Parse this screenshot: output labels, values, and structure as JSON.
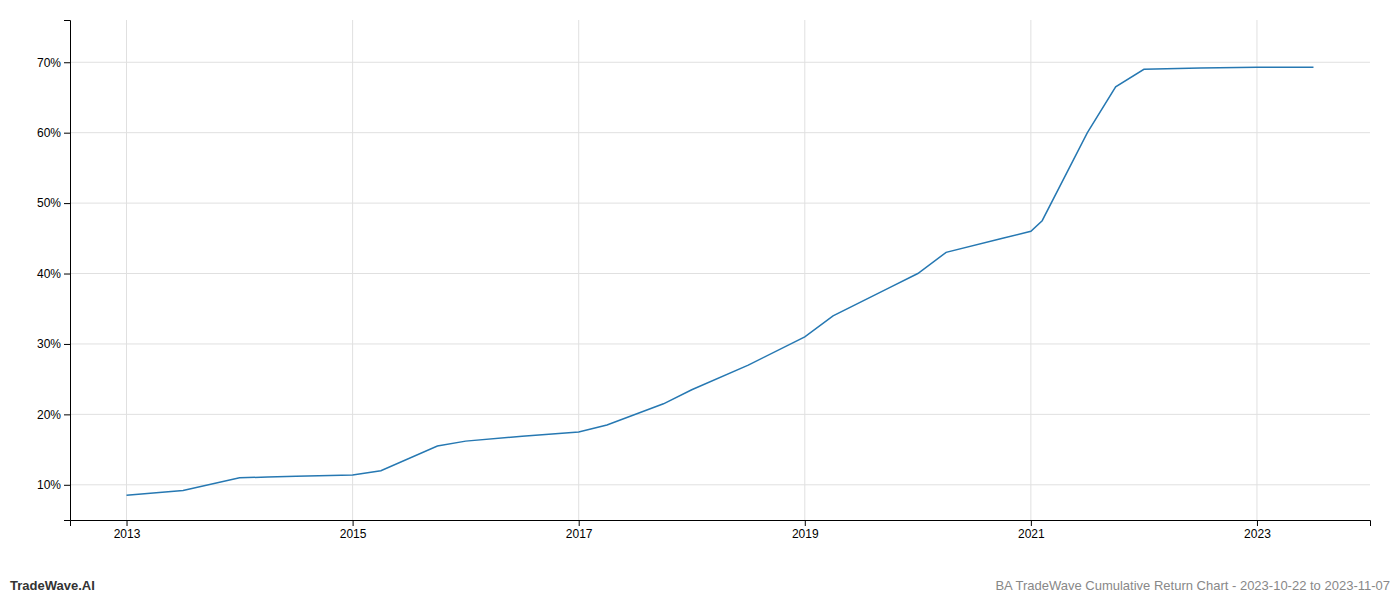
{
  "chart_data": {
    "type": "line",
    "x": [
      2013.0,
      2013.5,
      2014.0,
      2014.25,
      2014.5,
      2015.0,
      2015.25,
      2015.75,
      2016.0,
      2016.5,
      2017.0,
      2017.25,
      2017.75,
      2018.0,
      2018.5,
      2019.0,
      2019.25,
      2019.75,
      2020.0,
      2020.25,
      2020.75,
      2021.0,
      2021.1,
      2021.5,
      2021.75,
      2022.0,
      2022.5,
      2023.0,
      2023.5
    ],
    "values": [
      8.5,
      9.2,
      11.0,
      11.1,
      11.2,
      11.4,
      12.0,
      15.5,
      16.2,
      16.9,
      17.5,
      18.5,
      21.5,
      23.5,
      27.0,
      31.0,
      34.0,
      38.0,
      40.0,
      43.0,
      45.0,
      46.0,
      47.5,
      60.0,
      66.5,
      69.0,
      69.2,
      69.3,
      69.3
    ],
    "color": "#2678b2",
    "xlim": [
      2012.5,
      2024.0
    ],
    "ylim": [
      5,
      76
    ],
    "xticks": [
      2013,
      2015,
      2017,
      2019,
      2021,
      2023
    ],
    "yticks": [
      {
        "value": 10,
        "label": "10%"
      },
      {
        "value": 20,
        "label": "20%"
      },
      {
        "value": 30,
        "label": "30%"
      },
      {
        "value": 40,
        "label": "40%"
      },
      {
        "value": 50,
        "label": "50%"
      },
      {
        "value": 60,
        "label": "60%"
      },
      {
        "value": 70,
        "label": "70%"
      }
    ],
    "grid": true,
    "annotations": [
      "TradeWave.AI",
      "BA TradeWave Cumulative Return Chart - 2023-10-22 to 2023-11-07"
    ]
  }
}
